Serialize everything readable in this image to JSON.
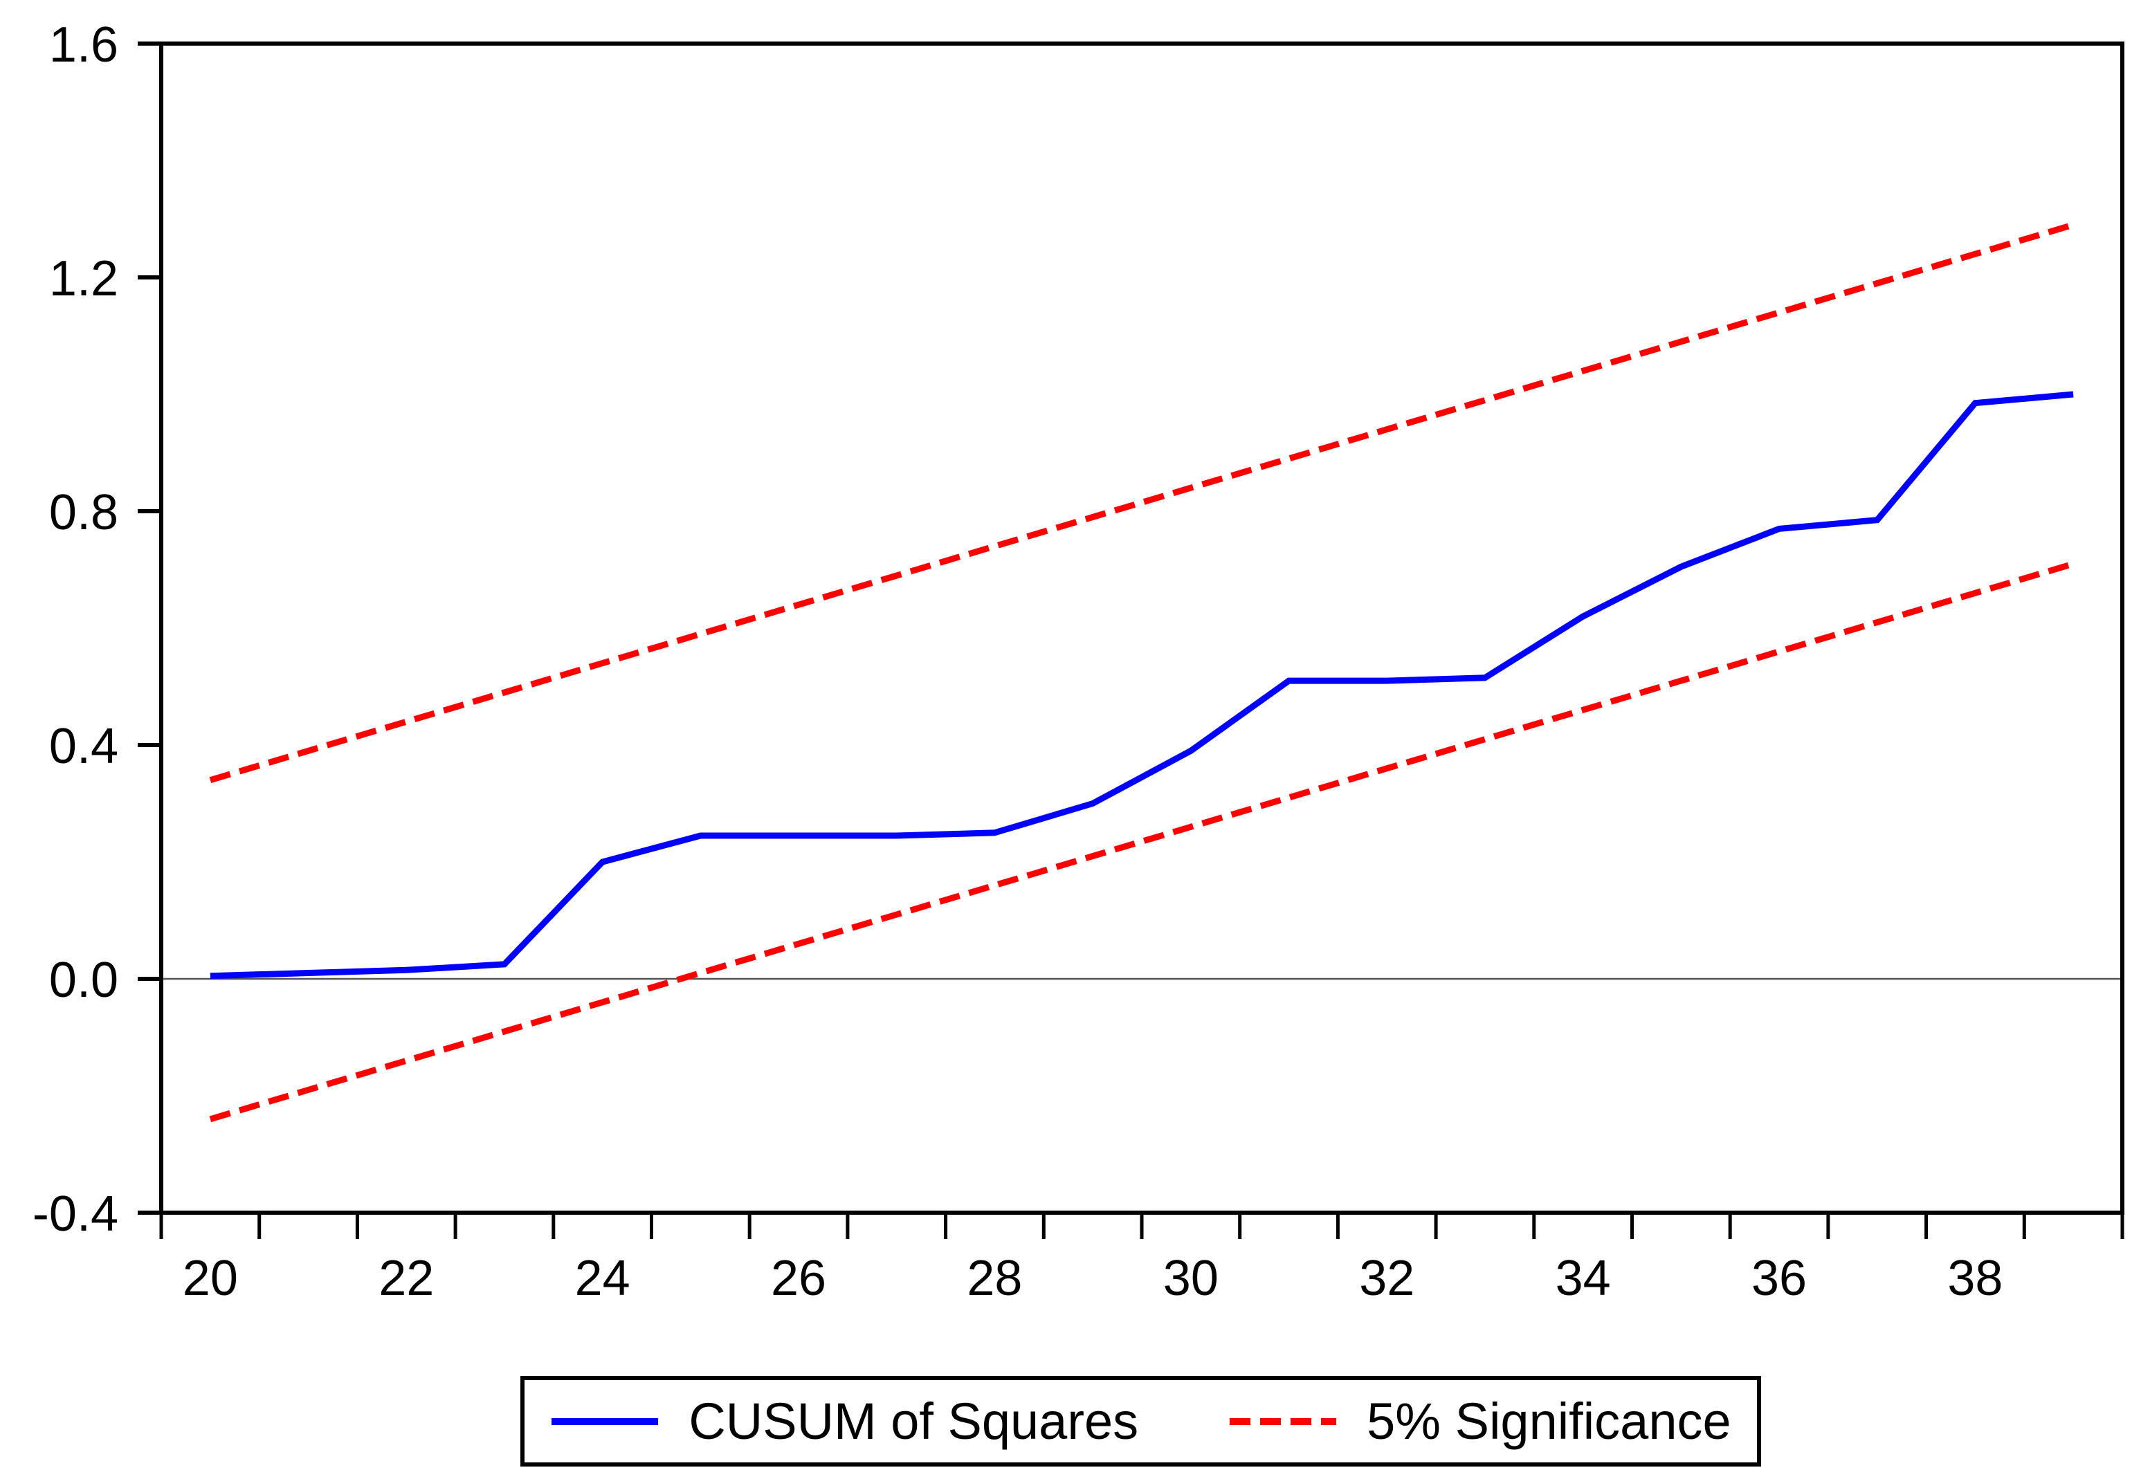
{
  "figure": {
    "background": "#ffffff",
    "legend": {
      "items": [
        {
          "label": "CUSUM of Squares",
          "style": "solid",
          "color": "#0000ff"
        },
        {
          "label": "5% Significance",
          "style": "dashed",
          "color": "#ff0000"
        }
      ]
    }
  },
  "chart_data": {
    "type": "line",
    "title": "",
    "xlabel": "",
    "ylabel": "",
    "x": [
      20,
      21,
      22,
      23,
      24,
      25,
      26,
      27,
      28,
      29,
      30,
      31,
      32,
      33,
      34,
      35,
      36,
      37,
      38,
      39
    ],
    "x_tick_label_values": [
      20,
      22,
      24,
      26,
      28,
      30,
      32,
      34,
      36,
      38
    ],
    "x_tick_labels": [
      "20",
      "22",
      "24",
      "26",
      "28",
      "30",
      "32",
      "34",
      "36",
      "38"
    ],
    "y_ticks": [
      1.6,
      1.2,
      0.8,
      0.4,
      0.0,
      -0.4
    ],
    "y_tick_labels": [
      "1.6",
      "1.2",
      "0.8",
      "0.4",
      "0.0",
      "-0.4"
    ],
    "xlim": [
      19.5,
      39.5
    ],
    "ylim": [
      -0.4,
      1.6
    ],
    "grid": false,
    "zero_line": true,
    "legend_position": "bottom-center",
    "series": [
      {
        "name": "CUSUM of Squares",
        "color": "#0000ff",
        "style": "solid",
        "values": [
          0.005,
          0.01,
          0.015,
          0.025,
          0.2,
          0.245,
          0.245,
          0.245,
          0.25,
          0.3,
          0.39,
          0.51,
          0.51,
          0.515,
          0.62,
          0.705,
          0.77,
          0.785,
          0.985,
          1.0
        ]
      },
      {
        "name": "5% Significance (upper bound)",
        "color": "#ff0000",
        "style": "dashed",
        "values": [
          0.34,
          0.39,
          0.44,
          0.49,
          0.54,
          0.59,
          0.64,
          0.69,
          0.74,
          0.79,
          0.84,
          0.89,
          0.94,
          0.99,
          1.04,
          1.09,
          1.14,
          1.19,
          1.24,
          1.29
        ]
      },
      {
        "name": "5% Significance (lower bound)",
        "color": "#ff0000",
        "style": "dashed",
        "values": [
          -0.24,
          -0.19,
          -0.14,
          -0.09,
          -0.04,
          0.01,
          0.06,
          0.11,
          0.16,
          0.21,
          0.26,
          0.31,
          0.36,
          0.41,
          0.46,
          0.51,
          0.56,
          0.61,
          0.66,
          0.71
        ]
      }
    ]
  }
}
